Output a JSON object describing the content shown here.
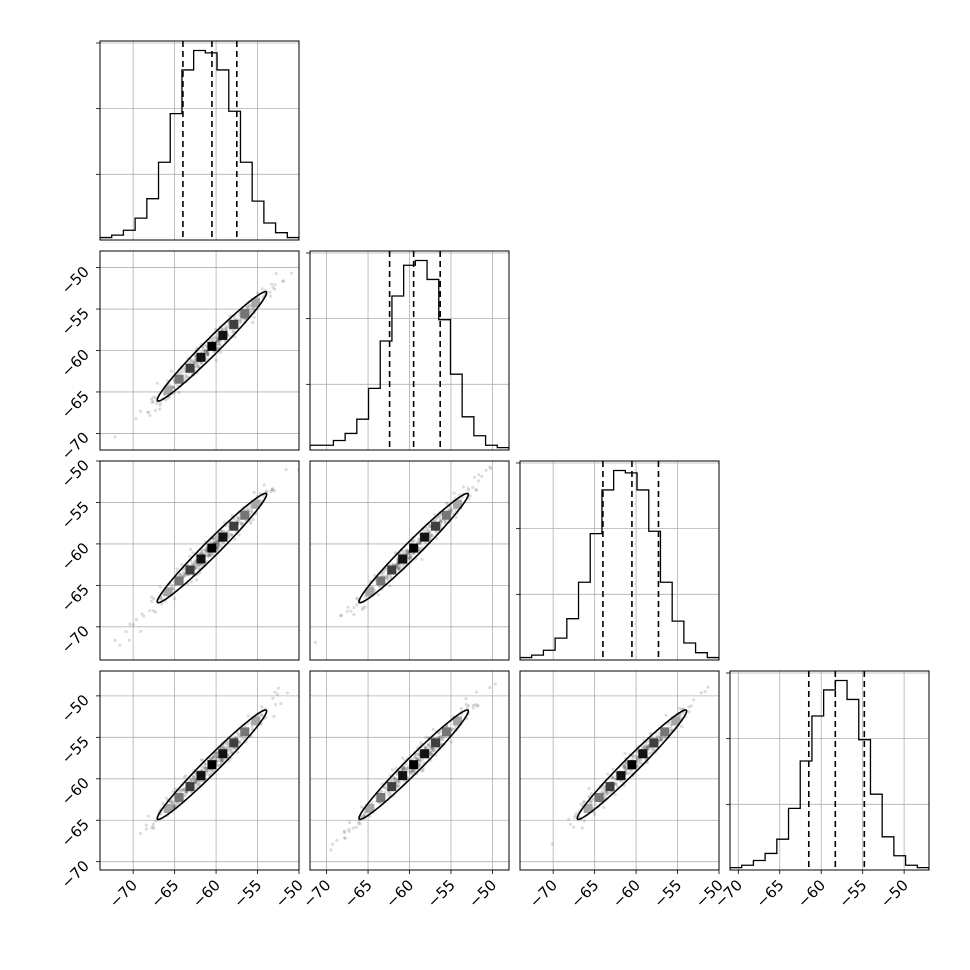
{
  "chart_data": {
    "type": "corner",
    "n_params": 4,
    "parameters": [
      {
        "mean": -60.5,
        "sd": 3.3,
        "quantiles": [
          -64.0,
          -60.5,
          -57.5
        ],
        "hist_range": [
          -74,
          -50
        ],
        "y_ticks": [
          -50,
          -55,
          -60,
          -65,
          -70
        ]
      },
      {
        "mean": -59.5,
        "sd": 3.3,
        "quantiles": [
          -62.4,
          -59.5,
          -56.3
        ],
        "hist_range": [
          -72,
          -48
        ],
        "y_ticks": [
          -50,
          -55,
          -60,
          -65,
          -70
        ]
      },
      {
        "mean": -60.5,
        "sd": 3.3,
        "quantiles": [
          -64.0,
          -60.5,
          -57.3
        ],
        "hist_range": [
          -74,
          -50
        ],
        "y_ticks": [
          -50,
          -55,
          -60,
          -65,
          -70
        ]
      },
      {
        "mean": -58.3,
        "sd": 3.3,
        "quantiles": [
          -61.5,
          -58.3,
          -54.8
        ],
        "hist_range": [
          -71,
          -47
        ],
        "y_ticks": [
          -50,
          -55,
          -60,
          -65,
          -70
        ]
      }
    ],
    "hist_counts": [
      [
        1,
        2,
        4,
        9,
        17,
        32,
        52,
        70,
        78,
        77,
        70,
        53,
        32,
        16,
        7,
        3,
        1
      ],
      [
        2,
        2,
        4,
        7,
        13,
        26,
        46,
        65,
        78,
        80,
        72,
        55,
        32,
        14,
        6,
        2,
        1
      ],
      [
        1,
        2,
        4,
        9,
        17,
        32,
        52,
        70,
        78,
        77,
        70,
        53,
        32,
        16,
        7,
        3,
        1
      ],
      [
        1,
        2,
        4,
        7,
        13,
        26,
        46,
        65,
        76,
        80,
        72,
        55,
        32,
        14,
        6,
        2,
        1
      ]
    ],
    "x_ticks": [
      [
        -70,
        -65,
        -60,
        -55,
        -50
      ],
      [
        -70,
        -65,
        -60,
        -55,
        -50
      ],
      [
        -70,
        -65,
        -60,
        -55,
        -50
      ],
      [
        -70,
        -65,
        -60,
        -55,
        -50
      ]
    ],
    "x_tick_labels": [
      "−70",
      "−65",
      "−60",
      "−55",
      "−50"
    ],
    "y_tick_labels": [
      "−50",
      "−55",
      "−60",
      "−65",
      "−70"
    ],
    "grid": true,
    "correlation": 0.98,
    "show_contours": true,
    "show_density": true,
    "show_scatter": true
  }
}
